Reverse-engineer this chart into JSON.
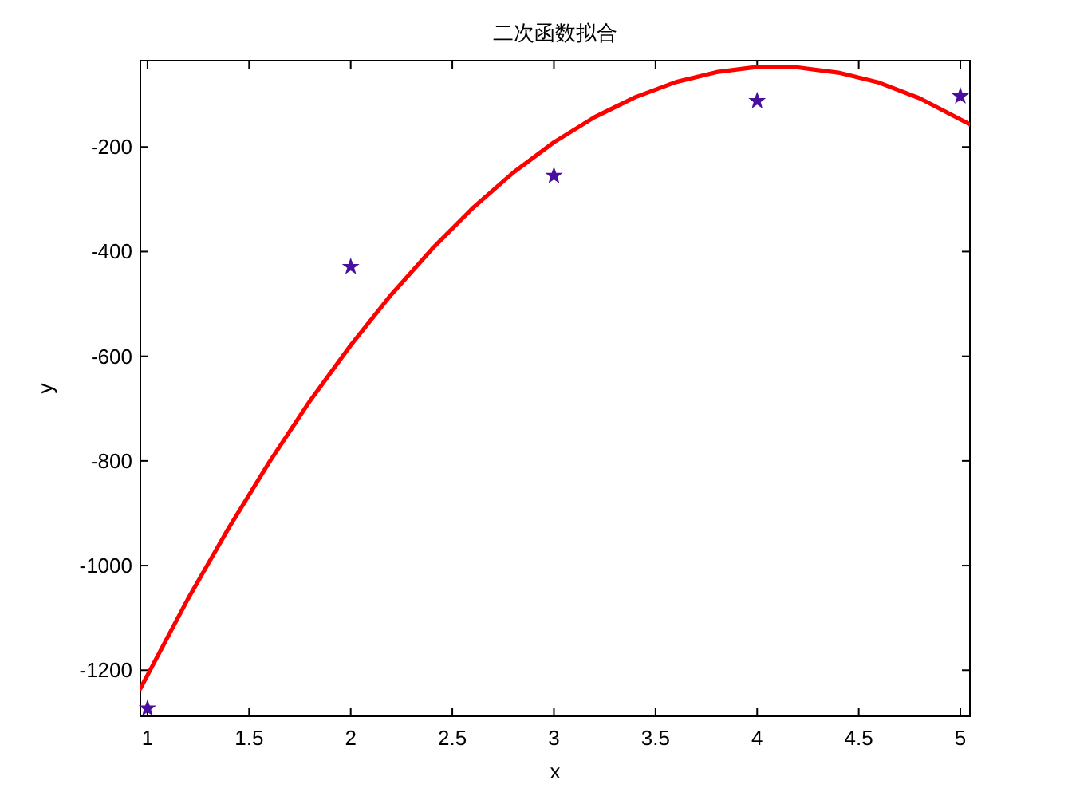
{
  "chart_data": {
    "type": "scatter",
    "title": "二次函数拟合",
    "xlabel": "x",
    "ylabel": "y",
    "xlim": [
      0.965,
      5.047
    ],
    "ylim": [
      -1288,
      -35
    ],
    "xticks": [
      1,
      1.5,
      2,
      2.5,
      3,
      3.5,
      4,
      4.5,
      5
    ],
    "yticks": [
      -1200,
      -1000,
      -800,
      -600,
      -400,
      -200
    ],
    "grid": false,
    "series": [
      {
        "marker": "star",
        "color": "#4b0fa0",
        "x": [
          1,
          2,
          3,
          4,
          5
        ],
        "values": [
          -1273,
          -429,
          -255,
          -112,
          -103
        ]
      },
      {
        "type": "line",
        "marker": "none",
        "line_style": "solid",
        "color": "#ff0000",
        "x": [
          0.965,
          1.2,
          1.4,
          1.6,
          1.8,
          2.0,
          2.2,
          2.4,
          2.6,
          2.8,
          3.0,
          3.2,
          3.4,
          3.6,
          3.8,
          4.0,
          4.2,
          4.4,
          4.6,
          4.8,
          5.047
        ],
        "values": [
          -1235,
          -1063,
          -928,
          -802,
          -685,
          -579,
          -482,
          -395,
          -317,
          -249,
          -191,
          -143,
          -105,
          -76,
          -57,
          -47,
          -48,
          -58,
          -77,
          -107,
          -157
        ]
      }
    ]
  }
}
